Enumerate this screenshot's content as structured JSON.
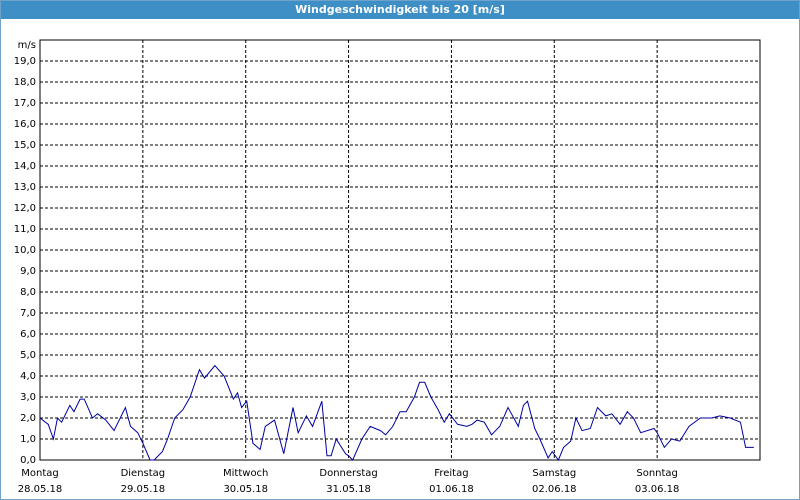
{
  "chart_data": {
    "type": "line",
    "title": "Windgeschwindigkeit bis 20 [m/s]",
    "y_unit": "m/s",
    "xlim": [
      0,
      7
    ],
    "ylim": [
      0,
      20
    ],
    "xticks": [
      {
        "value": 0,
        "label": "Montag",
        "date": "28.05.18"
      },
      {
        "value": 1,
        "label": "Dienstag",
        "date": "29.05.18"
      },
      {
        "value": 2,
        "label": "Mittwoch",
        "date": "30.05.18"
      },
      {
        "value": 3,
        "label": "Donnerstag",
        "date": "31.05.18"
      },
      {
        "value": 4,
        "label": "Freitag",
        "date": "01.06.18"
      },
      {
        "value": 5,
        "label": "Samstag",
        "date": "02.06.18"
      },
      {
        "value": 6,
        "label": "Sonntag",
        "date": "03.06.18"
      }
    ],
    "yticks": [
      {
        "value": 0,
        "label": "0,0"
      },
      {
        "value": 1,
        "label": "1,0"
      },
      {
        "value": 2,
        "label": "2,0"
      },
      {
        "value": 3,
        "label": "3,0"
      },
      {
        "value": 4,
        "label": "4,0"
      },
      {
        "value": 5,
        "label": "5,0"
      },
      {
        "value": 6,
        "label": "6,0"
      },
      {
        "value": 7,
        "label": "7,0"
      },
      {
        "value": 8,
        "label": "8,0"
      },
      {
        "value": 9,
        "label": "9,0"
      },
      {
        "value": 10,
        "label": "10,0"
      },
      {
        "value": 11,
        "label": "11,0"
      },
      {
        "value": 12,
        "label": "12,0"
      },
      {
        "value": 13,
        "label": "13,0"
      },
      {
        "value": 14,
        "label": "14,0"
      },
      {
        "value": 15,
        "label": "15,0"
      },
      {
        "value": 16,
        "label": "16,0"
      },
      {
        "value": 17,
        "label": "17,0"
      },
      {
        "value": 18,
        "label": "18,0"
      },
      {
        "value": 19,
        "label": "19,0"
      }
    ],
    "grid": true,
    "series": [
      {
        "name": "Windgeschwindigkeit",
        "color": "#0000a0",
        "x": [
          0,
          0.08,
          0.13,
          0.17,
          0.21,
          0.29,
          0.33,
          0.39,
          0.43,
          0.51,
          0.56,
          0.64,
          0.72,
          0.83,
          0.88,
          0.95,
          1.0,
          1.07,
          1.11,
          1.19,
          1.24,
          1.31,
          1.39,
          1.46,
          1.55,
          1.6,
          1.7,
          1.79,
          1.88,
          1.92,
          1.96,
          2.01,
          2.07,
          2.14,
          2.19,
          2.28,
          2.37,
          2.46,
          2.51,
          2.59,
          2.65,
          2.74,
          2.79,
          2.83,
          2.88,
          2.97,
          3.0,
          3.04,
          3.13,
          3.21,
          3.31,
          3.36,
          3.43,
          3.5,
          3.56,
          3.64,
          3.69,
          3.74,
          3.8,
          3.87,
          3.93,
          3.98,
          4.06,
          4.15,
          4.2,
          4.25,
          4.32,
          4.39,
          4.47,
          4.55,
          4.65,
          4.7,
          4.74,
          4.81,
          4.86,
          4.94,
          4.98,
          5.04,
          5.09,
          5.16,
          5.21,
          5.27,
          5.35,
          5.42,
          5.5,
          5.56,
          5.64,
          5.71,
          5.77,
          5.84,
          5.97,
          6.0,
          6.07,
          6.14,
          6.22,
          6.31,
          6.42,
          6.53,
          6.61,
          6.71,
          6.81,
          6.86,
          6.94
        ],
        "values": [
          2.0,
          1.7,
          1.0,
          2.0,
          1.8,
          2.6,
          2.3,
          2.9,
          2.9,
          2.0,
          2.2,
          1.9,
          1.4,
          2.5,
          1.6,
          1.3,
          0.8,
          0.0,
          0.0,
          0.4,
          1.0,
          2.0,
          2.4,
          3.0,
          4.3,
          3.9,
          4.5,
          4.0,
          2.9,
          3.2,
          2.5,
          2.8,
          0.8,
          0.5,
          1.6,
          1.9,
          0.3,
          2.5,
          1.3,
          2.1,
          1.6,
          2.8,
          0.2,
          0.2,
          1.0,
          0.3,
          0.2,
          0.0,
          1.0,
          1.6,
          1.4,
          1.2,
          1.6,
          2.3,
          2.3,
          3.0,
          3.7,
          3.7,
          3.0,
          2.4,
          1.8,
          2.2,
          1.7,
          1.6,
          1.7,
          1.9,
          1.8,
          1.2,
          1.6,
          2.5,
          1.6,
          2.6,
          2.8,
          1.5,
          1.0,
          0.1,
          0.4,
          0.0,
          0.6,
          0.9,
          2.0,
          1.4,
          1.5,
          2.5,
          2.1,
          2.2,
          1.7,
          2.3,
          2.0,
          1.3,
          1.5,
          1.3,
          0.6,
          1.0,
          0.9,
          1.6,
          2.0,
          2.0,
          2.1,
          2.0,
          1.8,
          0.6,
          0.6
        ]
      }
    ]
  }
}
